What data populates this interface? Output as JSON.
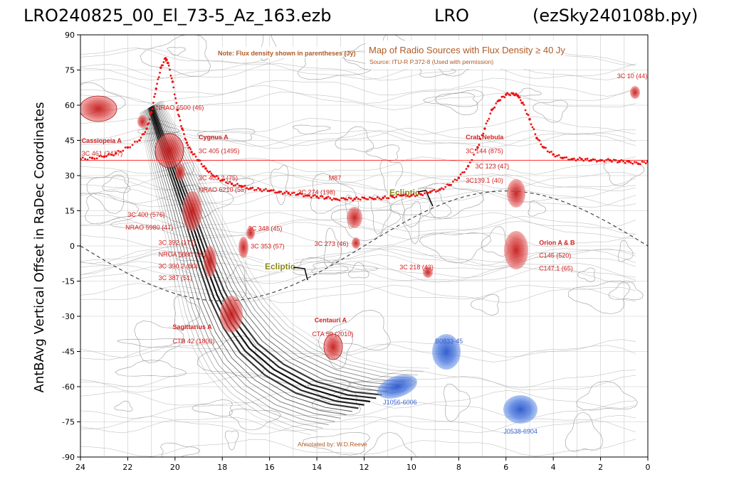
{
  "titles": {
    "left": "LRO240825_00_El_73-5_Az_163.ezb",
    "center": "LRO",
    "right": "(ezSky240108b.py)"
  },
  "chart_data": {
    "type": "scatter",
    "ylabel": "AntBAvg Vertical Offset in RaDec Coordinates",
    "xlabel": "",
    "xlim": [
      24,
      0
    ],
    "ylim": [
      -90,
      90
    ],
    "x_ticks": [
      "24",
      "22",
      "20",
      "18",
      "16",
      "14",
      "12",
      "10",
      "8",
      "6",
      "4",
      "2",
      "0"
    ],
    "y_ticks": [
      "90",
      "75",
      "60",
      "45",
      "30",
      "15",
      "0",
      "-15",
      "-30",
      "-45",
      "-60",
      "-75",
      "-90"
    ],
    "grid": true,
    "reference_line": {
      "y": 36.5,
      "color": "#ff3333"
    },
    "series": [
      {
        "marker_color": "#ee1111",
        "x": [
          24.0,
          23.5,
          23.0,
          22.5,
          22.0,
          21.5,
          21.2,
          21.0,
          20.8,
          20.6,
          20.4,
          20.3,
          20.1,
          19.9,
          19.7,
          19.5,
          19.3,
          19.0,
          18.7,
          18.4,
          18.0,
          17.6,
          17.2,
          16.8,
          16.4,
          16.0,
          15.6,
          15.2,
          14.8,
          14.4,
          14.0,
          13.6,
          13.2,
          12.8,
          12.4,
          12.0,
          11.6,
          11.2,
          10.8,
          10.4,
          10.0,
          9.6,
          9.2,
          8.8,
          8.4,
          8.0,
          7.6,
          7.2,
          6.9,
          6.6,
          6.3,
          6.0,
          5.7,
          5.5,
          5.3,
          5.0,
          4.7,
          4.4,
          4.0,
          3.6,
          3.2,
          2.8,
          2.4,
          2.0,
          1.6,
          1.2,
          0.8,
          0.4,
          0.0
        ],
        "y": [
          37,
          37.5,
          38,
          39.5,
          42,
          45,
          50,
          57,
          67,
          76,
          80,
          78,
          70,
          58,
          50,
          44,
          40,
          36.5,
          33,
          30,
          28,
          26.5,
          25.5,
          24.5,
          24,
          23.5,
          23,
          22.5,
          22,
          21.5,
          21,
          20.5,
          20,
          20,
          20,
          20.5,
          20,
          20.5,
          21,
          21.5,
          21.5,
          22,
          23,
          24,
          26,
          29,
          34,
          42,
          50,
          58,
          62,
          64.5,
          65,
          64,
          61,
          54,
          46,
          42,
          39,
          37.5,
          37,
          37,
          36.5,
          36.5,
          36.5,
          36,
          36,
          35,
          36
        ]
      }
    ],
    "overlay": {
      "note": "Note: Flux density shown in parentheses (Jy)",
      "map_title": "Map of Radio Sources with Flux Density ≥ 40 Jy",
      "source": "Source: ITU-R P.372-8 (Used with permission)",
      "annotated_by": "Annotated by: W.D.Reeve",
      "ecliptic_label": "Ecliptic",
      "labels": [
        {
          "text": "Cassiopeia A",
          "ra": 23.95,
          "dec": 44,
          "color": "#d42020",
          "bold": true
        },
        {
          "text": "3C 461 (2477)",
          "ra": 23.95,
          "dec": 38.5,
          "color": "#d42020"
        },
        {
          "text": "NRAO 6500 (46)",
          "ra": 20.8,
          "dec": 58,
          "color": "#d42020"
        },
        {
          "text": "Cygnus A",
          "ra": 19.0,
          "dec": 45.5,
          "color": "#d42020",
          "bold": true
        },
        {
          "text": "3C 405 (1495)",
          "ra": 19.0,
          "dec": 39.5,
          "color": "#d42020"
        },
        {
          "text": "3C 403.2 (75)",
          "ra": 19.0,
          "dec": 28,
          "color": "#d42020"
        },
        {
          "text": "NRAO 6210 (55)",
          "ra": 19.0,
          "dec": 23,
          "color": "#d42020"
        },
        {
          "text": "3C 400 (576)",
          "ra": 22.0,
          "dec": 12.5,
          "color": "#d42020"
        },
        {
          "text": "NRAO 5980 (47)",
          "ra": 22.1,
          "dec": 7,
          "color": "#d42020"
        },
        {
          "text": "3C 348 (45)",
          "ra": 16.9,
          "dec": 6.5,
          "color": "#d42020"
        },
        {
          "text": "3C 392 (171)",
          "ra": 20.7,
          "dec": 0.5,
          "color": "#d42020"
        },
        {
          "text": "NROA 5690 (90)",
          "ra": 20.7,
          "dec": -4.5,
          "color": "#d42020"
        },
        {
          "text": "3C 390.2 (80)",
          "ra": 20.7,
          "dec": -9.5,
          "color": "#d42020"
        },
        {
          "text": "3C 387 (51)",
          "ra": 20.7,
          "dec": -14.5,
          "color": "#d42020"
        },
        {
          "text": "3C 353 (57)",
          "ra": 16.8,
          "dec": -1,
          "color": "#d42020"
        },
        {
          "text": "3C 273 (46)",
          "ra": 14.1,
          "dec": 0,
          "color": "#d42020"
        },
        {
          "text": "M87",
          "ra": 13.5,
          "dec": 28,
          "color": "#d42020"
        },
        {
          "text": "3C 274 (198)",
          "ra": 14.8,
          "dec": 22,
          "color": "#d42020"
        },
        {
          "text": "Crab Nebula",
          "ra": 7.7,
          "dec": 45.5,
          "color": "#d42020",
          "bold": true
        },
        {
          "text": "3C 144 (875)",
          "ra": 7.7,
          "dec": 39.5,
          "color": "#d42020"
        },
        {
          "text": "3C 123 (47)",
          "ra": 7.3,
          "dec": 33,
          "color": "#d42020"
        },
        {
          "text": "3C139.1 (40)",
          "ra": 7.7,
          "dec": 27,
          "color": "#d42020"
        },
        {
          "text": "3C 218 (43)",
          "ra": 10.5,
          "dec": -10,
          "color": "#d42020"
        },
        {
          "text": "Orion A & B",
          "ra": 4.6,
          "dec": 0.5,
          "color": "#d42020",
          "bold": true
        },
        {
          "text": "C145 (520)",
          "ra": 4.6,
          "dec": -5,
          "color": "#d42020"
        },
        {
          "text": "C147.1 (65)",
          "ra": 4.6,
          "dec": -10.5,
          "color": "#d42020"
        },
        {
          "text": "3C 10 (44)",
          "ra": 1.3,
          "dec": 71.5,
          "color": "#d42020"
        },
        {
          "text": "Sagittarius A",
          "ra": 20.1,
          "dec": -35.5,
          "color": "#d42020",
          "bold": true
        },
        {
          "text": "CTB 42 (1800)",
          "ra": 20.1,
          "dec": -41.5,
          "color": "#d42020"
        },
        {
          "text": "Centauri A",
          "ra": 14.1,
          "dec": -32.5,
          "color": "#d42020",
          "bold": true
        },
        {
          "text": "CTA 59 (2010)",
          "ra": 14.2,
          "dec": -38.5,
          "color": "#d42020"
        },
        {
          "text": "B0833-45",
          "ra": 9.0,
          "dec": -41.5,
          "color": "#3a62d4"
        },
        {
          "text": "J1056-6006",
          "ra": 11.2,
          "dec": -67.5,
          "color": "#3a62d4"
        },
        {
          "text": "J0538-6904",
          "ra": 6.1,
          "dec": -80,
          "color": "#3a62d4"
        }
      ]
    }
  }
}
